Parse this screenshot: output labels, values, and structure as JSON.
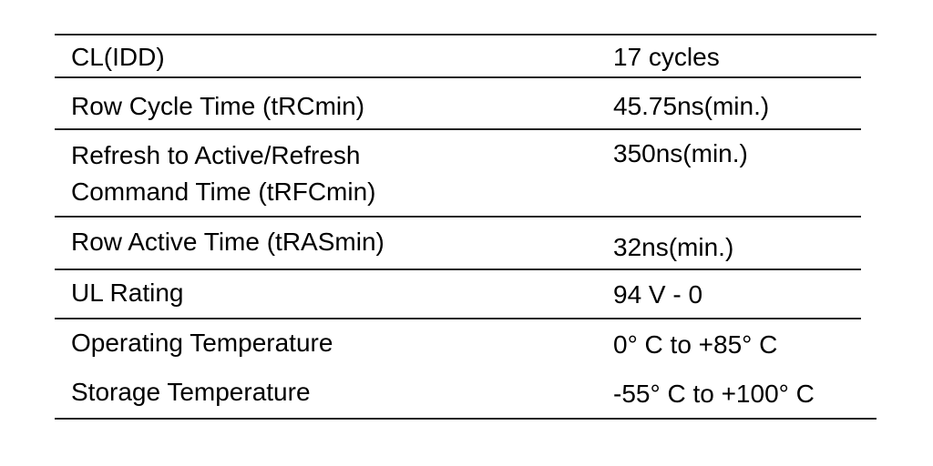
{
  "table": {
    "rows": [
      [
        "CL(IDD)",
        "17 cycles"
      ],
      [
        "Row Cycle Time (tRCmin)",
        "45.75ns(min.)"
      ],
      [
        "Refresh to Active/Refresh Command Time (tRFCmin)",
        "350ns(min.)"
      ],
      [
        "Row Active Time (tRASmin)",
        "32ns(min.)"
      ],
      [
        "UL Rating",
        "94 V - 0"
      ],
      [
        "Operating Temperature",
        "0° C to +85° C"
      ],
      [
        "Storage Temperature",
        "-55° C to +100° C"
      ]
    ]
  }
}
